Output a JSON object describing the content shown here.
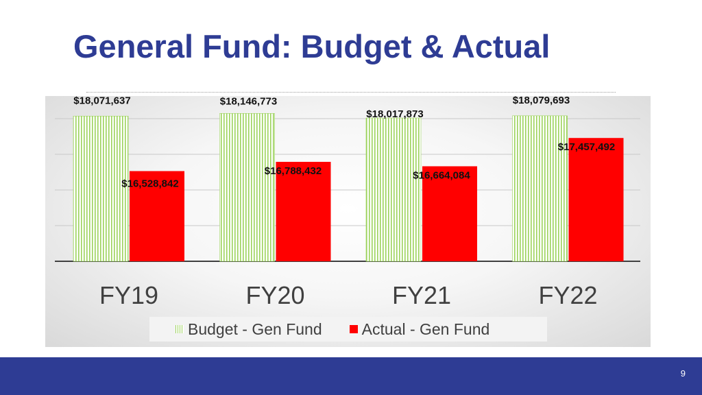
{
  "slide": {
    "title": "General Fund:  Budget & Actual",
    "page_number": "9"
  },
  "colors": {
    "title": "#2E3C94",
    "footer": "#2E3C94",
    "budget_stripe": "#9bd25a",
    "actual": "#ff0000"
  },
  "chart_data": {
    "type": "bar",
    "categories": [
      "FY19",
      "FY20",
      "FY21",
      "FY22"
    ],
    "series": [
      {
        "name": "Budget - Gen Fund",
        "values": [
          18071637,
          18146773,
          18017873,
          18079693
        ],
        "labels": [
          "$18,071,637",
          "$18,146,773",
          "$18,017,873",
          "$18,079,693"
        ],
        "style": "green-striped"
      },
      {
        "name": "Actual  - Gen Fund",
        "values": [
          16528842,
          16788432,
          16664084,
          17457492
        ],
        "labels": [
          "$16,528,842",
          "$16,788,432",
          "$16,664,084",
          "$17,457,492"
        ],
        "style": "solid-red"
      }
    ],
    "ylim": [
      14000000,
      18500000
    ],
    "grid": true,
    "legend_position": "bottom"
  }
}
